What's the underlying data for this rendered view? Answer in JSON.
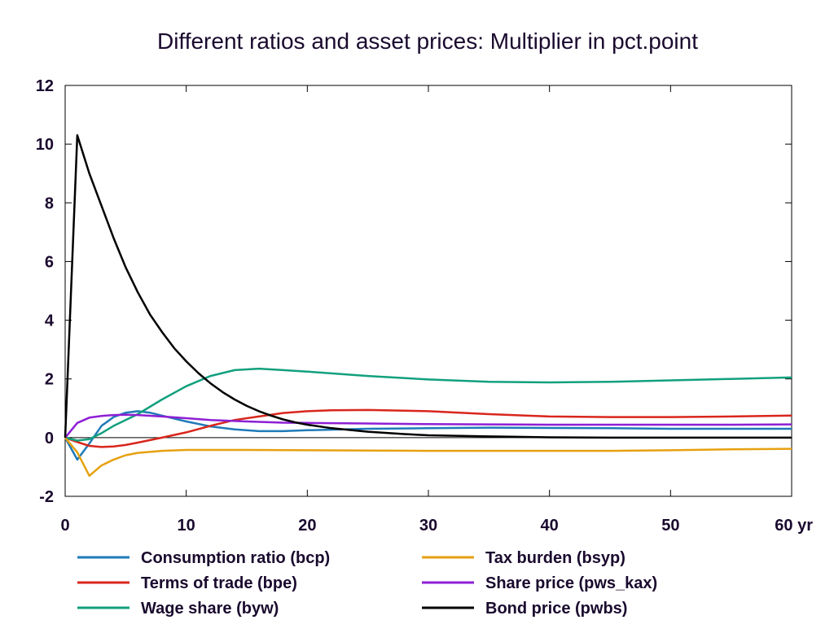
{
  "chart_data": {
    "type": "line",
    "title": "Different ratios and asset prices: Multiplier in pct.point",
    "xlabel": "",
    "ylabel": "",
    "x_unit_label": "yr",
    "xlim": [
      0,
      60
    ],
    "ylim": [
      -2,
      12
    ],
    "x_ticks": [
      "0",
      "10",
      "20",
      "30",
      "40",
      "50",
      "60 yr"
    ],
    "y_ticks": [
      "-2",
      "0",
      "2",
      "4",
      "6",
      "8",
      "10",
      "12"
    ],
    "grid": false,
    "legend_position": "bottom",
    "series": [
      {
        "name": "Consumption ratio (bcp)",
        "color": "#1f7ab8",
        "points": [
          [
            0,
            0
          ],
          [
            1,
            -0.75
          ],
          [
            2,
            -0.2
          ],
          [
            3,
            0.4
          ],
          [
            4,
            0.7
          ],
          [
            5,
            0.85
          ],
          [
            6,
            0.9
          ],
          [
            7,
            0.85
          ],
          [
            8,
            0.75
          ],
          [
            10,
            0.55
          ],
          [
            12,
            0.38
          ],
          [
            14,
            0.28
          ],
          [
            16,
            0.22
          ],
          [
            18,
            0.22
          ],
          [
            20,
            0.25
          ],
          [
            25,
            0.3
          ],
          [
            30,
            0.32
          ],
          [
            35,
            0.34
          ],
          [
            40,
            0.33
          ],
          [
            45,
            0.32
          ],
          [
            50,
            0.3
          ],
          [
            55,
            0.3
          ],
          [
            60,
            0.3
          ]
        ]
      },
      {
        "name": "Terms of trade (bpe)",
        "color": "#d9261c",
        "points": [
          [
            0,
            0
          ],
          [
            1,
            -0.15
          ],
          [
            2,
            -0.28
          ],
          [
            3,
            -0.32
          ],
          [
            4,
            -0.3
          ],
          [
            5,
            -0.25
          ],
          [
            6,
            -0.17
          ],
          [
            8,
            0
          ],
          [
            10,
            0.18
          ],
          [
            12,
            0.4
          ],
          [
            14,
            0.6
          ],
          [
            16,
            0.72
          ],
          [
            18,
            0.84
          ],
          [
            20,
            0.9
          ],
          [
            22,
            0.93
          ],
          [
            25,
            0.94
          ],
          [
            28,
            0.92
          ],
          [
            30,
            0.9
          ],
          [
            35,
            0.8
          ],
          [
            40,
            0.72
          ],
          [
            45,
            0.7
          ],
          [
            50,
            0.7
          ],
          [
            55,
            0.72
          ],
          [
            60,
            0.75
          ]
        ]
      },
      {
        "name": "Wage share (byw)",
        "color": "#12a07e",
        "points": [
          [
            0,
            0
          ],
          [
            1,
            -0.1
          ],
          [
            2,
            -0.05
          ],
          [
            3,
            0.15
          ],
          [
            4,
            0.4
          ],
          [
            6,
            0.8
          ],
          [
            8,
            1.3
          ],
          [
            10,
            1.75
          ],
          [
            12,
            2.1
          ],
          [
            14,
            2.3
          ],
          [
            16,
            2.35
          ],
          [
            18,
            2.3
          ],
          [
            20,
            2.25
          ],
          [
            25,
            2.1
          ],
          [
            30,
            1.98
          ],
          [
            35,
            1.9
          ],
          [
            40,
            1.88
          ],
          [
            45,
            1.9
          ],
          [
            50,
            1.95
          ],
          [
            55,
            2.0
          ],
          [
            60,
            2.05
          ]
        ]
      },
      {
        "name": "Tax burden (bsyp)",
        "color": "#e6a110",
        "points": [
          [
            0,
            0
          ],
          [
            1,
            -0.5
          ],
          [
            2,
            -1.3
          ],
          [
            3,
            -0.95
          ],
          [
            4,
            -0.75
          ],
          [
            5,
            -0.6
          ],
          [
            6,
            -0.52
          ],
          [
            8,
            -0.45
          ],
          [
            10,
            -0.42
          ],
          [
            15,
            -0.42
          ],
          [
            20,
            -0.43
          ],
          [
            25,
            -0.44
          ],
          [
            30,
            -0.45
          ],
          [
            35,
            -0.45
          ],
          [
            40,
            -0.45
          ],
          [
            45,
            -0.45
          ],
          [
            50,
            -0.43
          ],
          [
            55,
            -0.4
          ],
          [
            60,
            -0.38
          ]
        ]
      },
      {
        "name": "Share price (pws_kax)",
        "color": "#8e1fd4",
        "points": [
          [
            0,
            0
          ],
          [
            1,
            0.5
          ],
          [
            2,
            0.68
          ],
          [
            3,
            0.74
          ],
          [
            4,
            0.77
          ],
          [
            5,
            0.78
          ],
          [
            6,
            0.77
          ],
          [
            8,
            0.72
          ],
          [
            10,
            0.66
          ],
          [
            12,
            0.6
          ],
          [
            15,
            0.55
          ],
          [
            18,
            0.51
          ],
          [
            20,
            0.5
          ],
          [
            25,
            0.48
          ],
          [
            30,
            0.46
          ],
          [
            35,
            0.45
          ],
          [
            40,
            0.44
          ],
          [
            45,
            0.44
          ],
          [
            50,
            0.44
          ],
          [
            55,
            0.44
          ],
          [
            60,
            0.45
          ]
        ]
      },
      {
        "name": "Bond price (pwbs)",
        "color": "#000000",
        "points": [
          [
            0,
            0
          ],
          [
            1,
            10.3
          ],
          [
            2,
            9.0
          ],
          [
            3,
            7.9
          ],
          [
            4,
            6.8
          ],
          [
            5,
            5.8
          ],
          [
            6,
            4.95
          ],
          [
            7,
            4.2
          ],
          [
            8,
            3.6
          ],
          [
            9,
            3.05
          ],
          [
            10,
            2.6
          ],
          [
            11,
            2.2
          ],
          [
            12,
            1.85
          ],
          [
            13,
            1.55
          ],
          [
            14,
            1.3
          ],
          [
            15,
            1.08
          ],
          [
            16,
            0.9
          ],
          [
            17,
            0.75
          ],
          [
            18,
            0.62
          ],
          [
            19,
            0.52
          ],
          [
            20,
            0.44
          ],
          [
            22,
            0.32
          ],
          [
            25,
            0.2
          ],
          [
            28,
            0.12
          ],
          [
            30,
            0.08
          ],
          [
            35,
            0.04
          ],
          [
            40,
            0.01
          ],
          [
            45,
            0
          ],
          [
            50,
            0
          ],
          [
            55,
            0
          ],
          [
            60,
            0
          ]
        ]
      }
    ]
  }
}
